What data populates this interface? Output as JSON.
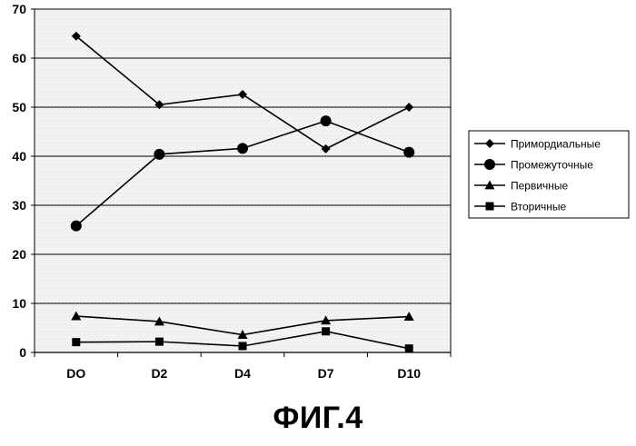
{
  "chart_data": {
    "type": "line",
    "title": "",
    "xlabel": "",
    "ylabel": "",
    "categories": [
      "DO",
      "D2",
      "D4",
      "D7",
      "D10"
    ],
    "ylim": [
      0,
      70
    ],
    "yticks": [
      0,
      10,
      20,
      30,
      40,
      50,
      60,
      70
    ],
    "grid": true,
    "legend_position": "right",
    "series": [
      {
        "name": "Примордиальные",
        "marker": "diamond",
        "values": [
          64.5,
          50.5,
          52.6,
          41.5,
          50.0
        ]
      },
      {
        "name": "Промежуточные",
        "marker": "circle",
        "values": [
          25.8,
          40.4,
          41.6,
          47.2,
          40.8
        ]
      },
      {
        "name": "Первичные",
        "marker": "triangle",
        "values": [
          7.4,
          6.3,
          3.6,
          6.5,
          7.3
        ]
      },
      {
        "name": "Вторичные",
        "marker": "square",
        "values": [
          2.1,
          2.2,
          1.3,
          4.3,
          0.8
        ]
      }
    ]
  },
  "figure": {
    "caption": "ФИГ.4"
  }
}
